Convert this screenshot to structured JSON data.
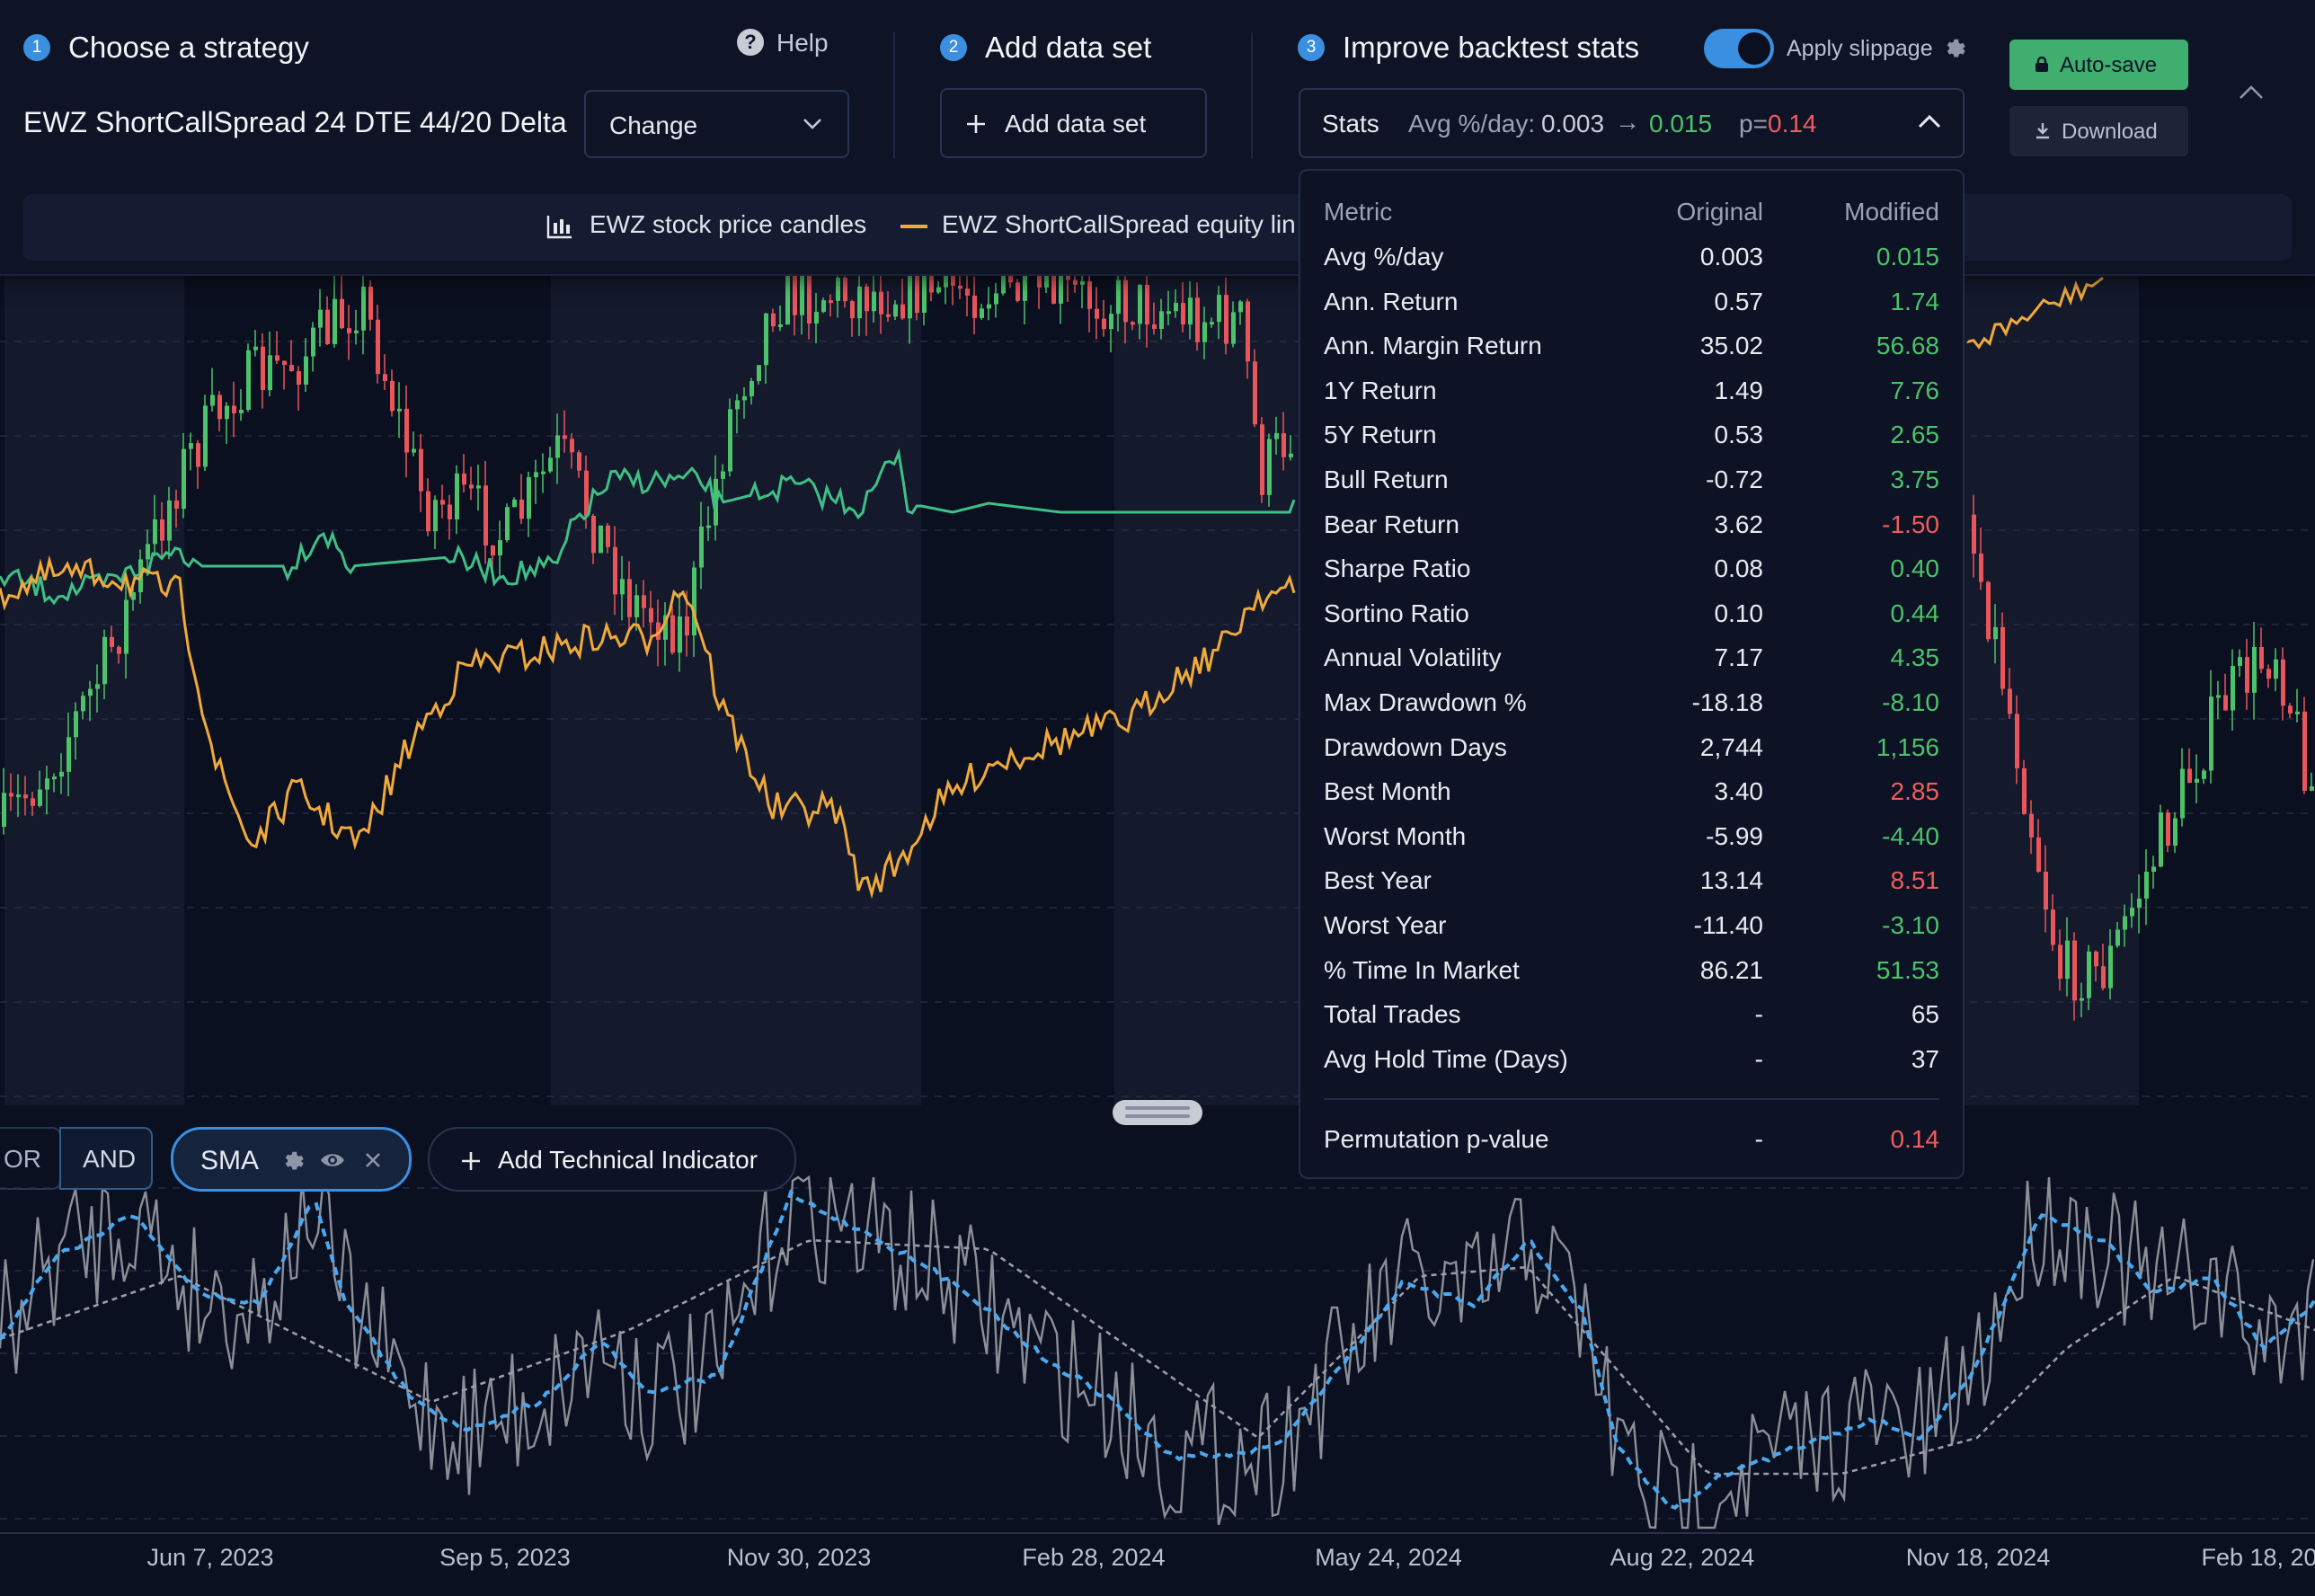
{
  "steps": {
    "step1": {
      "num": "1",
      "title": "Choose a strategy"
    },
    "step2": {
      "num": "2",
      "title": "Add data set"
    },
    "step3": {
      "num": "3",
      "title": "Improve backtest stats"
    }
  },
  "help_label": "Help",
  "strategy_name": "EWZ ShortCallSpread 24 DTE 44/20 Delta",
  "change_label": "Change",
  "add_dataset_label": "Add data set",
  "apply_slippage": {
    "label": "Apply slippage",
    "enabled": true
  },
  "autosave_label": "Auto-save",
  "download_label": "Download",
  "stats_summary": {
    "label": "Stats",
    "metric": "Avg %/day:",
    "original": "0.003",
    "arrow": "→",
    "modified": "0.015",
    "p_prefix": "p=",
    "p_value": "0.14"
  },
  "legend": {
    "candles": "EWZ stock price candles",
    "equity": "EWZ ShortCallSpread equity lin"
  },
  "stats_table": {
    "headers": {
      "metric": "Metric",
      "original": "Original",
      "modified": "Modified"
    },
    "rows": [
      {
        "metric": "Avg %/day",
        "original": "0.003",
        "modified": "0.015",
        "tone": "good"
      },
      {
        "metric": "Ann. Return",
        "original": "0.57",
        "modified": "1.74",
        "tone": "good"
      },
      {
        "metric": "Ann. Margin Return",
        "original": "35.02",
        "modified": "56.68",
        "tone": "good"
      },
      {
        "metric": "1Y Return",
        "original": "1.49",
        "modified": "7.76",
        "tone": "good"
      },
      {
        "metric": "5Y Return",
        "original": "0.53",
        "modified": "2.65",
        "tone": "good"
      },
      {
        "metric": "Bull Return",
        "original": "-0.72",
        "modified": "3.75",
        "tone": "good"
      },
      {
        "metric": "Bear Return",
        "original": "3.62",
        "modified": "-1.50",
        "tone": "bad"
      },
      {
        "metric": "Sharpe Ratio",
        "original": "0.08",
        "modified": "0.40",
        "tone": "good"
      },
      {
        "metric": "Sortino Ratio",
        "original": "0.10",
        "modified": "0.44",
        "tone": "good"
      },
      {
        "metric": "Annual Volatility",
        "original": "7.17",
        "modified": "4.35",
        "tone": "good"
      },
      {
        "metric": "Max Drawdown %",
        "original": "-18.18",
        "modified": "-8.10",
        "tone": "good"
      },
      {
        "metric": "Drawdown Days",
        "original": "2,744",
        "modified": "1,156",
        "tone": "good"
      },
      {
        "metric": "Best Month",
        "original": "3.40",
        "modified": "2.85",
        "tone": "bad"
      },
      {
        "metric": "Worst Month",
        "original": "-5.99",
        "modified": "-4.40",
        "tone": "good"
      },
      {
        "metric": "Best Year",
        "original": "13.14",
        "modified": "8.51",
        "tone": "bad"
      },
      {
        "metric": "Worst Year",
        "original": "-11.40",
        "modified": "-3.10",
        "tone": "good"
      },
      {
        "metric": "% Time In Market",
        "original": "86.21",
        "modified": "51.53",
        "tone": "good"
      },
      {
        "metric": "Total Trades",
        "original": "-",
        "modified": "65",
        "tone": "neutral"
      },
      {
        "metric": "Avg Hold Time (Days)",
        "original": "-",
        "modified": "37",
        "tone": "neutral"
      }
    ],
    "permutation": {
      "metric": "Permutation p-value",
      "original": "-",
      "modified": "0.14",
      "tone": "bad"
    }
  },
  "logic": {
    "or_label": "OR",
    "and_label": "AND"
  },
  "indicator": {
    "name": "SMA"
  },
  "add_indicator_label": "Add Technical Indicator",
  "x_axis_dates": [
    "Jun 7, 2023",
    "Sep 5, 2023",
    "Nov 30, 2023",
    "Feb 28, 2024",
    "May 24, 2024",
    "Aug 22, 2024",
    "Nov 18, 2024",
    "Feb 18, 20"
  ],
  "colors": {
    "accent_blue": "#3a8fe0",
    "good": "#4cc36a",
    "bad": "#f25c5c",
    "neutral": "#e8ebf2",
    "candle_up": "#4cc36a",
    "candle_down": "#e8555a",
    "equity_line": "#f0a93b",
    "strategy_line": "#3fbf86",
    "sma_line": "#4aa8ee",
    "autosave_bg": "#3fae6e"
  },
  "icons": [
    "help-icon",
    "chevron-down-icon",
    "plus-icon",
    "gear-icon",
    "candles-icon",
    "lock-icon",
    "download-icon",
    "arrow-right-icon",
    "chevron-up-icon",
    "eye-icon",
    "close-icon",
    "drag-handle-icon"
  ]
}
